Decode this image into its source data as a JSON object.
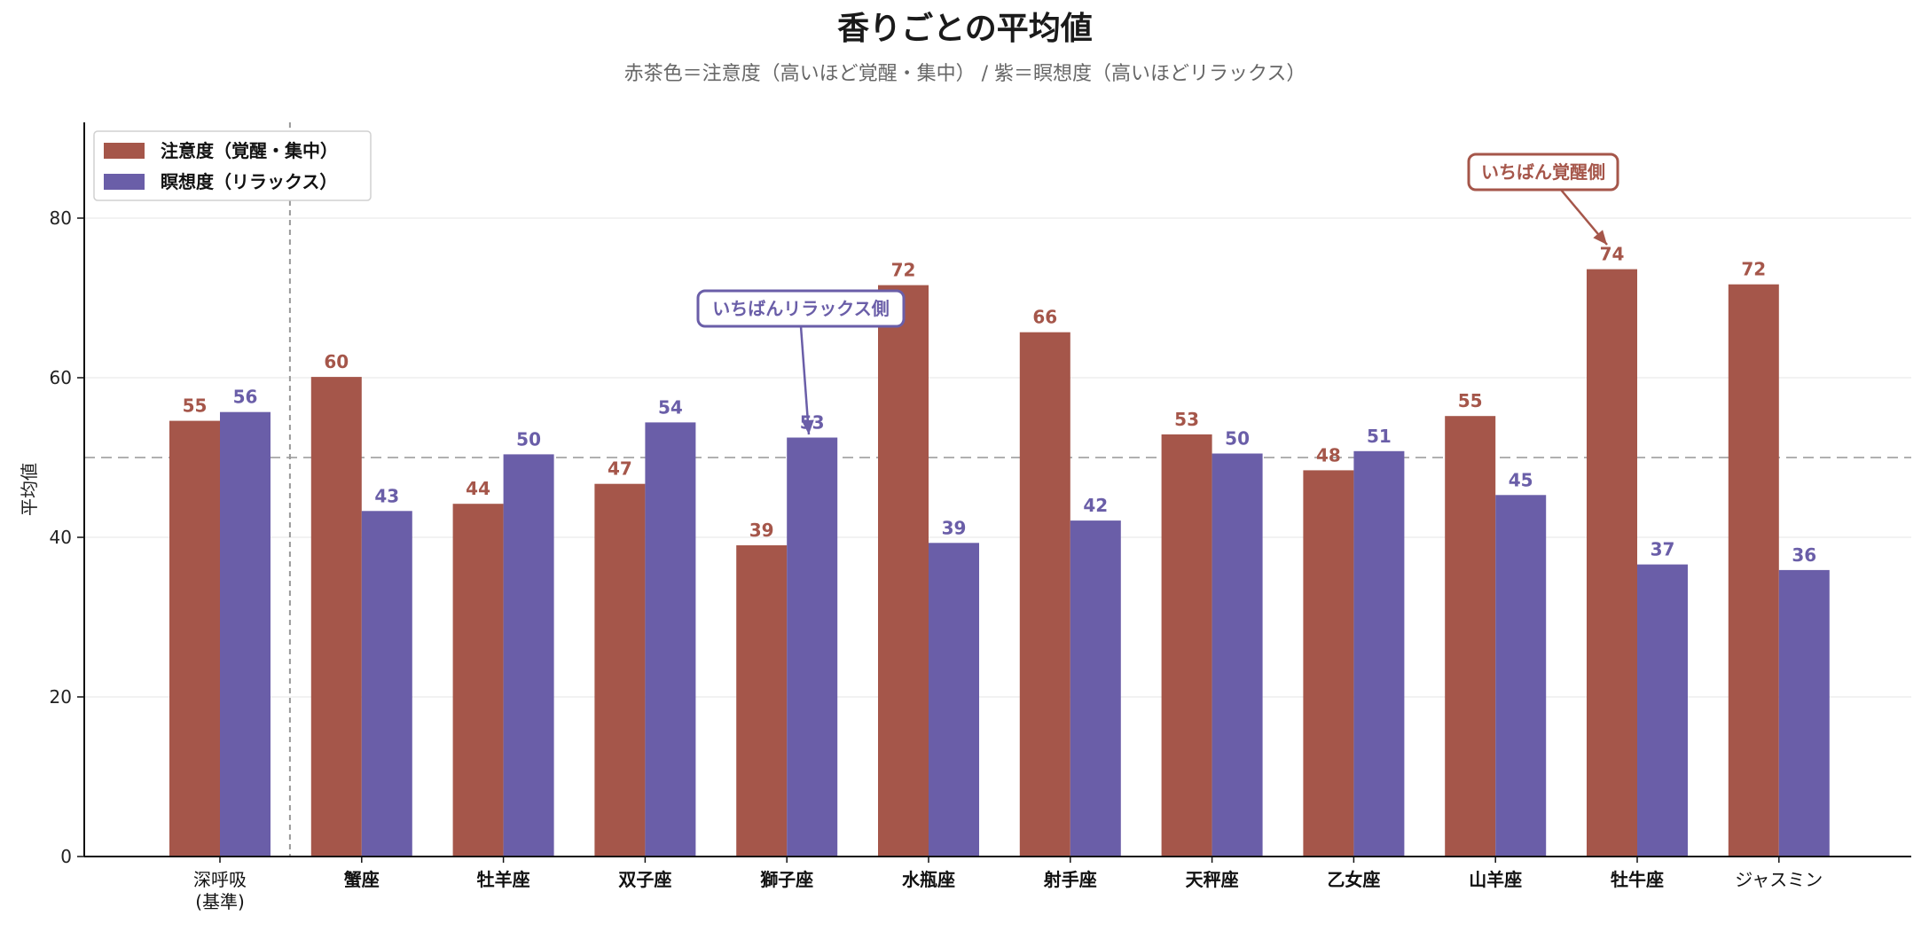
{
  "chart_data": {
    "type": "bar",
    "title": "香りごとの平均値",
    "subtitle": "赤茶色＝注意度（高いほど覚醒・集中） / 紫＝瞑想度（高いほどリラックス）",
    "ylabel": "平均値",
    "xlabel": "",
    "ylim": [
      0,
      92
    ],
    "yticks": [
      0,
      20,
      40,
      60,
      80
    ],
    "reference_line": 50,
    "grid": true,
    "legend_position": "top-left",
    "categories": [
      {
        "lines": [
          "深呼吸",
          "(基準)"
        ],
        "bold": false
      },
      {
        "lines": [
          "蟹座"
        ],
        "bold": true
      },
      {
        "lines": [
          "牡羊座"
        ],
        "bold": true
      },
      {
        "lines": [
          "双子座"
        ],
        "bold": true
      },
      {
        "lines": [
          "獅子座"
        ],
        "bold": true
      },
      {
        "lines": [
          "水瓶座"
        ],
        "bold": true
      },
      {
        "lines": [
          "射手座"
        ],
        "bold": true
      },
      {
        "lines": [
          "天秤座"
        ],
        "bold": true
      },
      {
        "lines": [
          "乙女座"
        ],
        "bold": true
      },
      {
        "lines": [
          "山羊座"
        ],
        "bold": true
      },
      {
        "lines": [
          "牡牛座"
        ],
        "bold": true
      },
      {
        "lines": [
          "ジャスミン"
        ],
        "bold": false
      }
    ],
    "series": [
      {
        "name": "注意度（覚醒・集中）",
        "color": "#a5564a",
        "values": [
          54.6,
          60.1,
          44.2,
          46.7,
          39.0,
          71.6,
          65.7,
          52.9,
          48.4,
          55.2,
          73.6,
          71.7
        ],
        "labels": [
          "55",
          "60",
          "44",
          "47",
          "39",
          "72",
          "66",
          "53",
          "48",
          "55",
          "74",
          "72"
        ]
      },
      {
        "name": "瞑想度（リラックス）",
        "color": "#6a5ea8",
        "values": [
          55.7,
          43.3,
          50.4,
          54.4,
          52.5,
          39.3,
          42.1,
          50.5,
          50.8,
          45.3,
          36.6,
          35.9
        ],
        "labels": [
          "56",
          "43",
          "50",
          "54",
          "53",
          "39",
          "42",
          "50",
          "51",
          "45",
          "37",
          "36"
        ]
      }
    ],
    "annotations": [
      {
        "text": "いちばん覚醒側",
        "category_index": 10,
        "series_index": 0,
        "color": "#a5564a"
      },
      {
        "text": "いちばんリラックス側",
        "category_index": 4,
        "series_index": 1,
        "color": "#6a5ea8"
      }
    ]
  }
}
